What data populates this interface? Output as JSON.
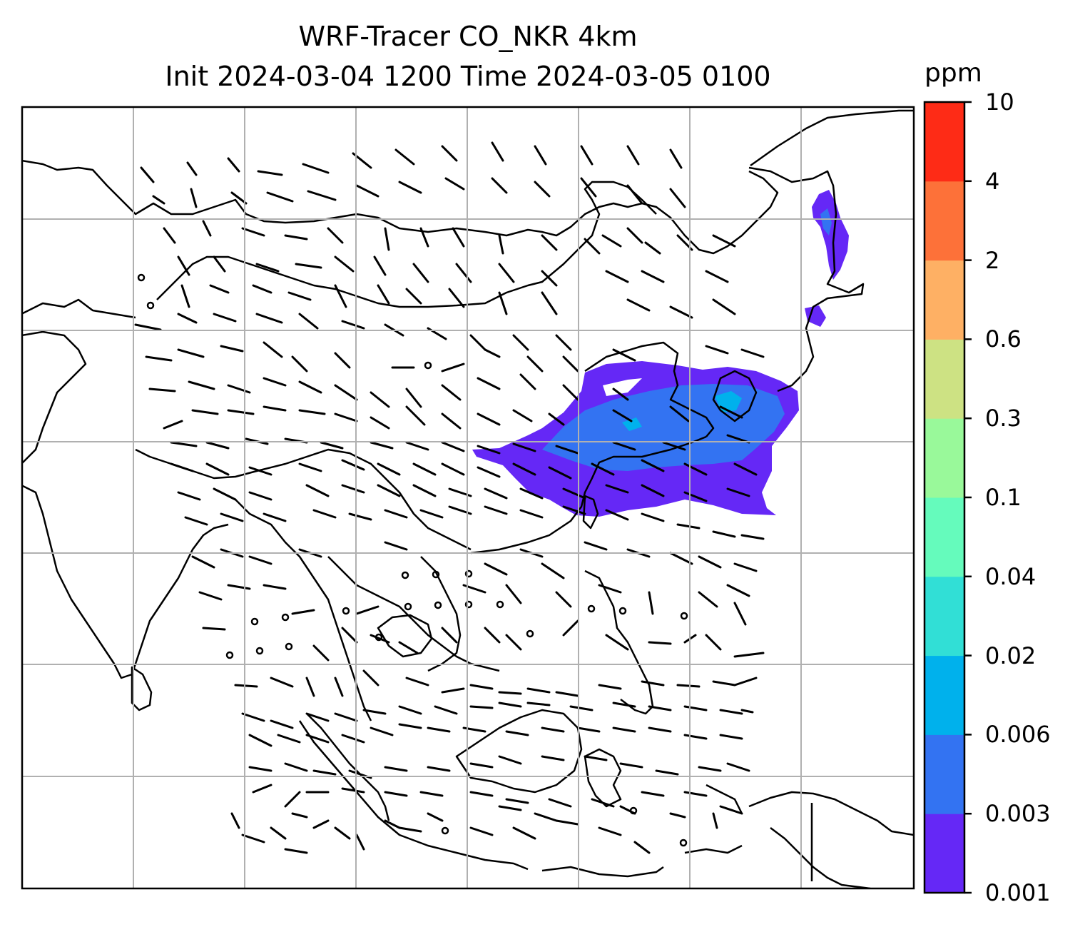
{
  "title": {
    "line1": "WRF-Tracer CO_NKR 4km",
    "line2": "Init 2024-03-04 1200 Time 2024-03-05 0100"
  },
  "colorbar": {
    "unit": "ppm",
    "levels": [
      "0.001",
      "0.003",
      "0.006",
      "0.02",
      "0.04",
      "0.1",
      "0.3",
      "0.6",
      "2",
      "4",
      "10"
    ],
    "colors": [
      "#6528f6",
      "#3373f2",
      "#00b1ec",
      "#31dfd6",
      "#65fbbc",
      "#99f99a",
      "#cde283",
      "#feb064",
      "#fd7139",
      "#fe2b16"
    ]
  },
  "map": {
    "background": "#ffffff",
    "coastline_color": "#000000",
    "gridline_color": "#b0b0b0",
    "plume_colors": {
      "low": "#6528f6",
      "mid": "#3373f2",
      "high": "#00b1ec"
    },
    "wind_barb_color": "#000000"
  }
}
